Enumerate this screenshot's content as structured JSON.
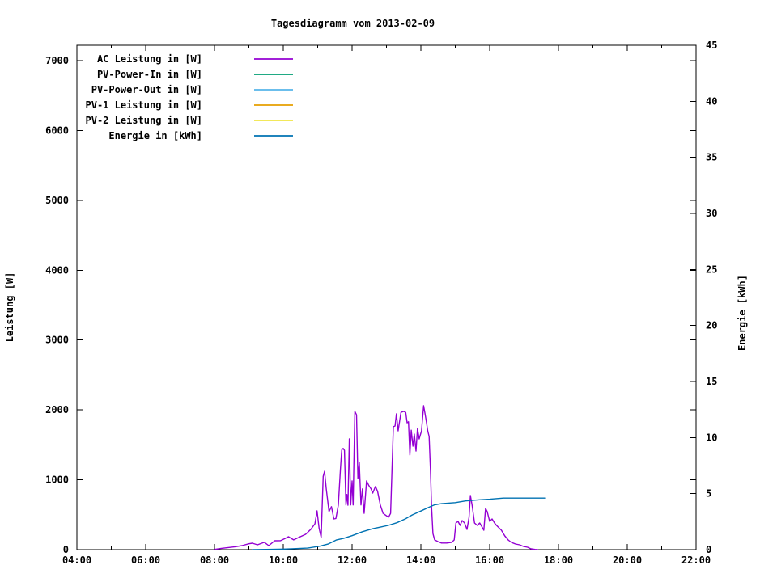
{
  "title": "Tagesdiagramm vom 2013-02-09",
  "axes": {
    "x": {
      "range_hours": [
        4,
        22
      ],
      "major_hours": [
        4,
        6,
        8,
        10,
        12,
        14,
        16,
        18,
        20,
        22
      ],
      "tick_labels": [
        "04:00",
        "06:00",
        "08:00",
        "10:00",
        "12:00",
        "14:00",
        "16:00",
        "18:00",
        "20:00",
        "22:00"
      ],
      "minor_hours": [
        5,
        7,
        9,
        11,
        13,
        15,
        17,
        19,
        21
      ]
    },
    "y_left": {
      "label": "Leistung [W]",
      "ticks": [
        0,
        1000,
        2000,
        3000,
        4000,
        5000,
        6000,
        7000
      ],
      "range": [
        0,
        7220
      ]
    },
    "y_right": {
      "label": "Energie [kWh]",
      "ticks": [
        0,
        5,
        10,
        15,
        20,
        25,
        30,
        35,
        40,
        45
      ],
      "range": [
        0,
        45
      ]
    }
  },
  "legend": {
    "entries": [
      {
        "label": "AC Leistung in [W]",
        "color": "#9400d3"
      },
      {
        "label": "PV-Power-In in [W]",
        "color": "#009e73"
      },
      {
        "label": "PV-Power-Out in [W]",
        "color": "#56b4e9"
      },
      {
        "label": "PV-1 Leistung in [W]",
        "color": "#e69f00"
      },
      {
        "label": "PV-2 Leistung in [W]",
        "color": "#f0e442"
      },
      {
        "label": "Energie in [kWh]",
        "color": "#0072b2"
      }
    ]
  },
  "chart_data": {
    "type": "line",
    "title": "Tagesdiagramm vom 2013-02-09",
    "xlabel": "",
    "x_unit": "time of day (hours)",
    "x_range": [
      4,
      22
    ],
    "y_left_label": "Leistung [W]",
    "y_left_range": [
      0,
      7220
    ],
    "y_right_label": "Energie [kWh]",
    "y_right_range": [
      0,
      45
    ],
    "grid": false,
    "legend_position": "top-left-inside",
    "series": [
      {
        "name": "AC Leistung in [W]",
        "color": "#9400d3",
        "axis": "left",
        "points": [
          [
            8.02,
            5
          ],
          [
            8.2,
            18
          ],
          [
            8.4,
            30
          ],
          [
            8.6,
            42
          ],
          [
            8.8,
            58
          ],
          [
            9.0,
            85
          ],
          [
            9.1,
            93
          ],
          [
            9.25,
            70
          ],
          [
            9.45,
            105
          ],
          [
            9.58,
            58
          ],
          [
            9.75,
            127
          ],
          [
            9.92,
            128
          ],
          [
            10.05,
            160
          ],
          [
            10.15,
            185
          ],
          [
            10.3,
            140
          ],
          [
            10.45,
            175
          ],
          [
            10.65,
            220
          ],
          [
            10.8,
            290
          ],
          [
            10.92,
            370
          ],
          [
            10.98,
            555
          ],
          [
            11.04,
            310
          ],
          [
            11.1,
            175
          ],
          [
            11.16,
            1050
          ],
          [
            11.2,
            1122
          ],
          [
            11.25,
            870
          ],
          [
            11.33,
            545
          ],
          [
            11.4,
            615
          ],
          [
            11.47,
            440
          ],
          [
            11.53,
            445
          ],
          [
            11.6,
            636
          ],
          [
            11.66,
            1150
          ],
          [
            11.7,
            1425
          ],
          [
            11.74,
            1450
          ],
          [
            11.78,
            1420
          ],
          [
            11.82,
            640
          ],
          [
            11.85,
            790
          ],
          [
            11.88,
            636
          ],
          [
            11.92,
            1585
          ],
          [
            11.96,
            640
          ],
          [
            12.0,
            985
          ],
          [
            12.03,
            640
          ],
          [
            12.08,
            1980
          ],
          [
            12.13,
            1930
          ],
          [
            12.17,
            1020
          ],
          [
            12.21,
            1250
          ],
          [
            12.26,
            640
          ],
          [
            12.3,
            870
          ],
          [
            12.35,
            520
          ],
          [
            12.42,
            985
          ],
          [
            12.48,
            925
          ],
          [
            12.55,
            870
          ],
          [
            12.6,
            810
          ],
          [
            12.68,
            905
          ],
          [
            12.74,
            835
          ],
          [
            12.82,
            640
          ],
          [
            12.9,
            520
          ],
          [
            13.0,
            485
          ],
          [
            13.06,
            465
          ],
          [
            13.12,
            520
          ],
          [
            13.2,
            1760
          ],
          [
            13.25,
            1770
          ],
          [
            13.29,
            1945
          ],
          [
            13.34,
            1700
          ],
          [
            13.42,
            1965
          ],
          [
            13.5,
            1980
          ],
          [
            13.56,
            1965
          ],
          [
            13.6,
            1815
          ],
          [
            13.64,
            1830
          ],
          [
            13.68,
            1355
          ],
          [
            13.72,
            1710
          ],
          [
            13.77,
            1480
          ],
          [
            13.81,
            1655
          ],
          [
            13.86,
            1410
          ],
          [
            13.9,
            1735
          ],
          [
            13.95,
            1585
          ],
          [
            14.02,
            1700
          ],
          [
            14.08,
            2060
          ],
          [
            14.12,
            1950
          ],
          [
            14.16,
            1830
          ],
          [
            14.2,
            1700
          ],
          [
            14.24,
            1620
          ],
          [
            14.28,
            1120
          ],
          [
            14.31,
            615
          ],
          [
            14.35,
            230
          ],
          [
            14.4,
            140
          ],
          [
            14.5,
            115
          ],
          [
            14.6,
            95
          ],
          [
            14.75,
            95
          ],
          [
            14.9,
            105
          ],
          [
            14.97,
            140
          ],
          [
            15.02,
            382
          ],
          [
            15.08,
            405
          ],
          [
            15.14,
            347
          ],
          [
            15.2,
            417
          ],
          [
            15.27,
            382
          ],
          [
            15.34,
            289
          ],
          [
            15.4,
            463
          ],
          [
            15.44,
            775
          ],
          [
            15.49,
            636
          ],
          [
            15.56,
            382
          ],
          [
            15.64,
            347
          ],
          [
            15.71,
            382
          ],
          [
            15.78,
            324
          ],
          [
            15.83,
            278
          ],
          [
            15.88,
            590
          ],
          [
            15.93,
            544
          ],
          [
            16.0,
            405
          ],
          [
            16.07,
            440
          ],
          [
            16.14,
            382
          ],
          [
            16.2,
            347
          ],
          [
            16.27,
            312
          ],
          [
            16.34,
            278
          ],
          [
            16.44,
            197
          ],
          [
            16.54,
            139
          ],
          [
            16.63,
            104
          ],
          [
            16.75,
            81
          ],
          [
            16.87,
            69
          ],
          [
            16.98,
            46
          ],
          [
            17.1,
            35
          ],
          [
            17.2,
            12
          ],
          [
            17.32,
            4
          ],
          [
            17.4,
            0
          ]
        ]
      },
      {
        "name": "PV-Power-In in [W]",
        "color": "#009e73",
        "axis": "left",
        "points": []
      },
      {
        "name": "PV-Power-Out in [W]",
        "color": "#56b4e9",
        "axis": "left",
        "points": []
      },
      {
        "name": "PV-1 Leistung in [W]",
        "color": "#e69f00",
        "axis": "left",
        "points": []
      },
      {
        "name": "PV-2 Leistung in [W]",
        "color": "#f0e442",
        "axis": "left",
        "points": []
      },
      {
        "name": "Energie in [kWh]",
        "color": "#0072b2",
        "axis": "right",
        "points": [
          [
            9.1,
            0.0
          ],
          [
            9.5,
            0.02
          ],
          [
            10.0,
            0.05
          ],
          [
            10.25,
            0.08
          ],
          [
            10.7,
            0.14
          ],
          [
            11.05,
            0.3
          ],
          [
            11.3,
            0.5
          ],
          [
            11.55,
            0.87
          ],
          [
            11.75,
            1.0
          ],
          [
            12.0,
            1.25
          ],
          [
            12.3,
            1.6
          ],
          [
            12.6,
            1.87
          ],
          [
            12.8,
            2.0
          ],
          [
            13.05,
            2.16
          ],
          [
            13.3,
            2.4
          ],
          [
            13.55,
            2.75
          ],
          [
            13.75,
            3.1
          ],
          [
            14.0,
            3.45
          ],
          [
            14.25,
            3.8
          ],
          [
            14.4,
            4.0
          ],
          [
            14.6,
            4.1
          ],
          [
            15.0,
            4.2
          ],
          [
            15.3,
            4.35
          ],
          [
            15.7,
            4.45
          ],
          [
            16.0,
            4.5
          ],
          [
            16.4,
            4.6
          ],
          [
            17.6,
            4.6
          ]
        ]
      }
    ]
  }
}
